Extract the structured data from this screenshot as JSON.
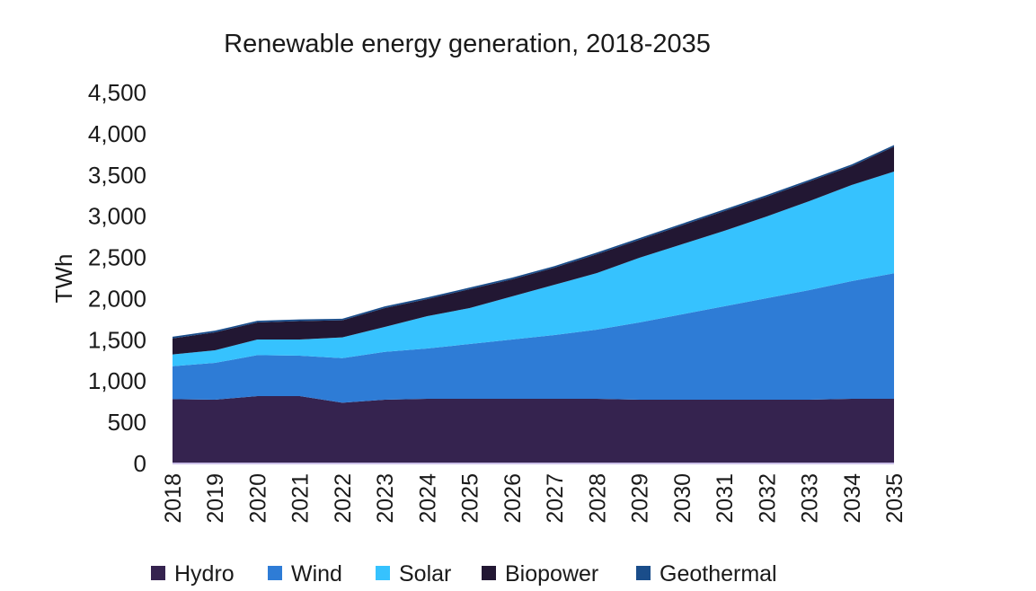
{
  "chart_data": {
    "type": "area",
    "stacked": true,
    "title": "Renewable energy generation, 2018-2035",
    "xlabel": "",
    "ylabel": "TWh",
    "ylim": [
      0,
      4500
    ],
    "yticks": [
      "0",
      "500",
      "1,000",
      "1,500",
      "2,000",
      "2,500",
      "3,000",
      "3,500",
      "4,000",
      "4,500"
    ],
    "grid": false,
    "legend": "bottom",
    "categories": [
      "2018",
      "2019",
      "2020",
      "2021",
      "2022",
      "2023",
      "2024",
      "2025",
      "2026",
      "2027",
      "2028",
      "2029",
      "2030",
      "2031",
      "2032",
      "2033",
      "2034",
      "2035"
    ],
    "series": [
      {
        "name": "Hydro",
        "color": "#35234f",
        "values": [
          770,
          763,
          806,
          806,
          726,
          763,
          774,
          774,
          774,
          774,
          774,
          763,
          763,
          763,
          763,
          763,
          774,
          774
        ]
      },
      {
        "name": "Wind",
        "color": "#2e7cd6",
        "values": [
          399,
          446,
          498,
          491,
          541,
          580,
          610,
          664,
          719,
          773,
          839,
          937,
          1035,
          1133,
          1231,
          1329,
          1427,
          1522
        ]
      },
      {
        "name": "Solar",
        "color": "#36c2fe",
        "values": [
          142,
          153,
          189,
          196,
          251,
          302,
          392,
          436,
          523,
          610,
          686,
          784,
          850,
          915,
          991,
          1079,
          1166,
          1234
        ]
      },
      {
        "name": "Biopower",
        "color": "#221733",
        "values": [
          196,
          218,
          207,
          223,
          207,
          229,
          207,
          229,
          207,
          207,
          229,
          218,
          229,
          240,
          240,
          239,
          229,
          302
        ]
      },
      {
        "name": "Geothermal",
        "color": "#1a4d8a",
        "values": [
          20,
          20,
          20,
          20,
          20,
          20,
          20,
          20,
          20,
          20,
          20,
          20,
          20,
          20,
          20,
          20,
          20,
          20
        ]
      }
    ]
  }
}
